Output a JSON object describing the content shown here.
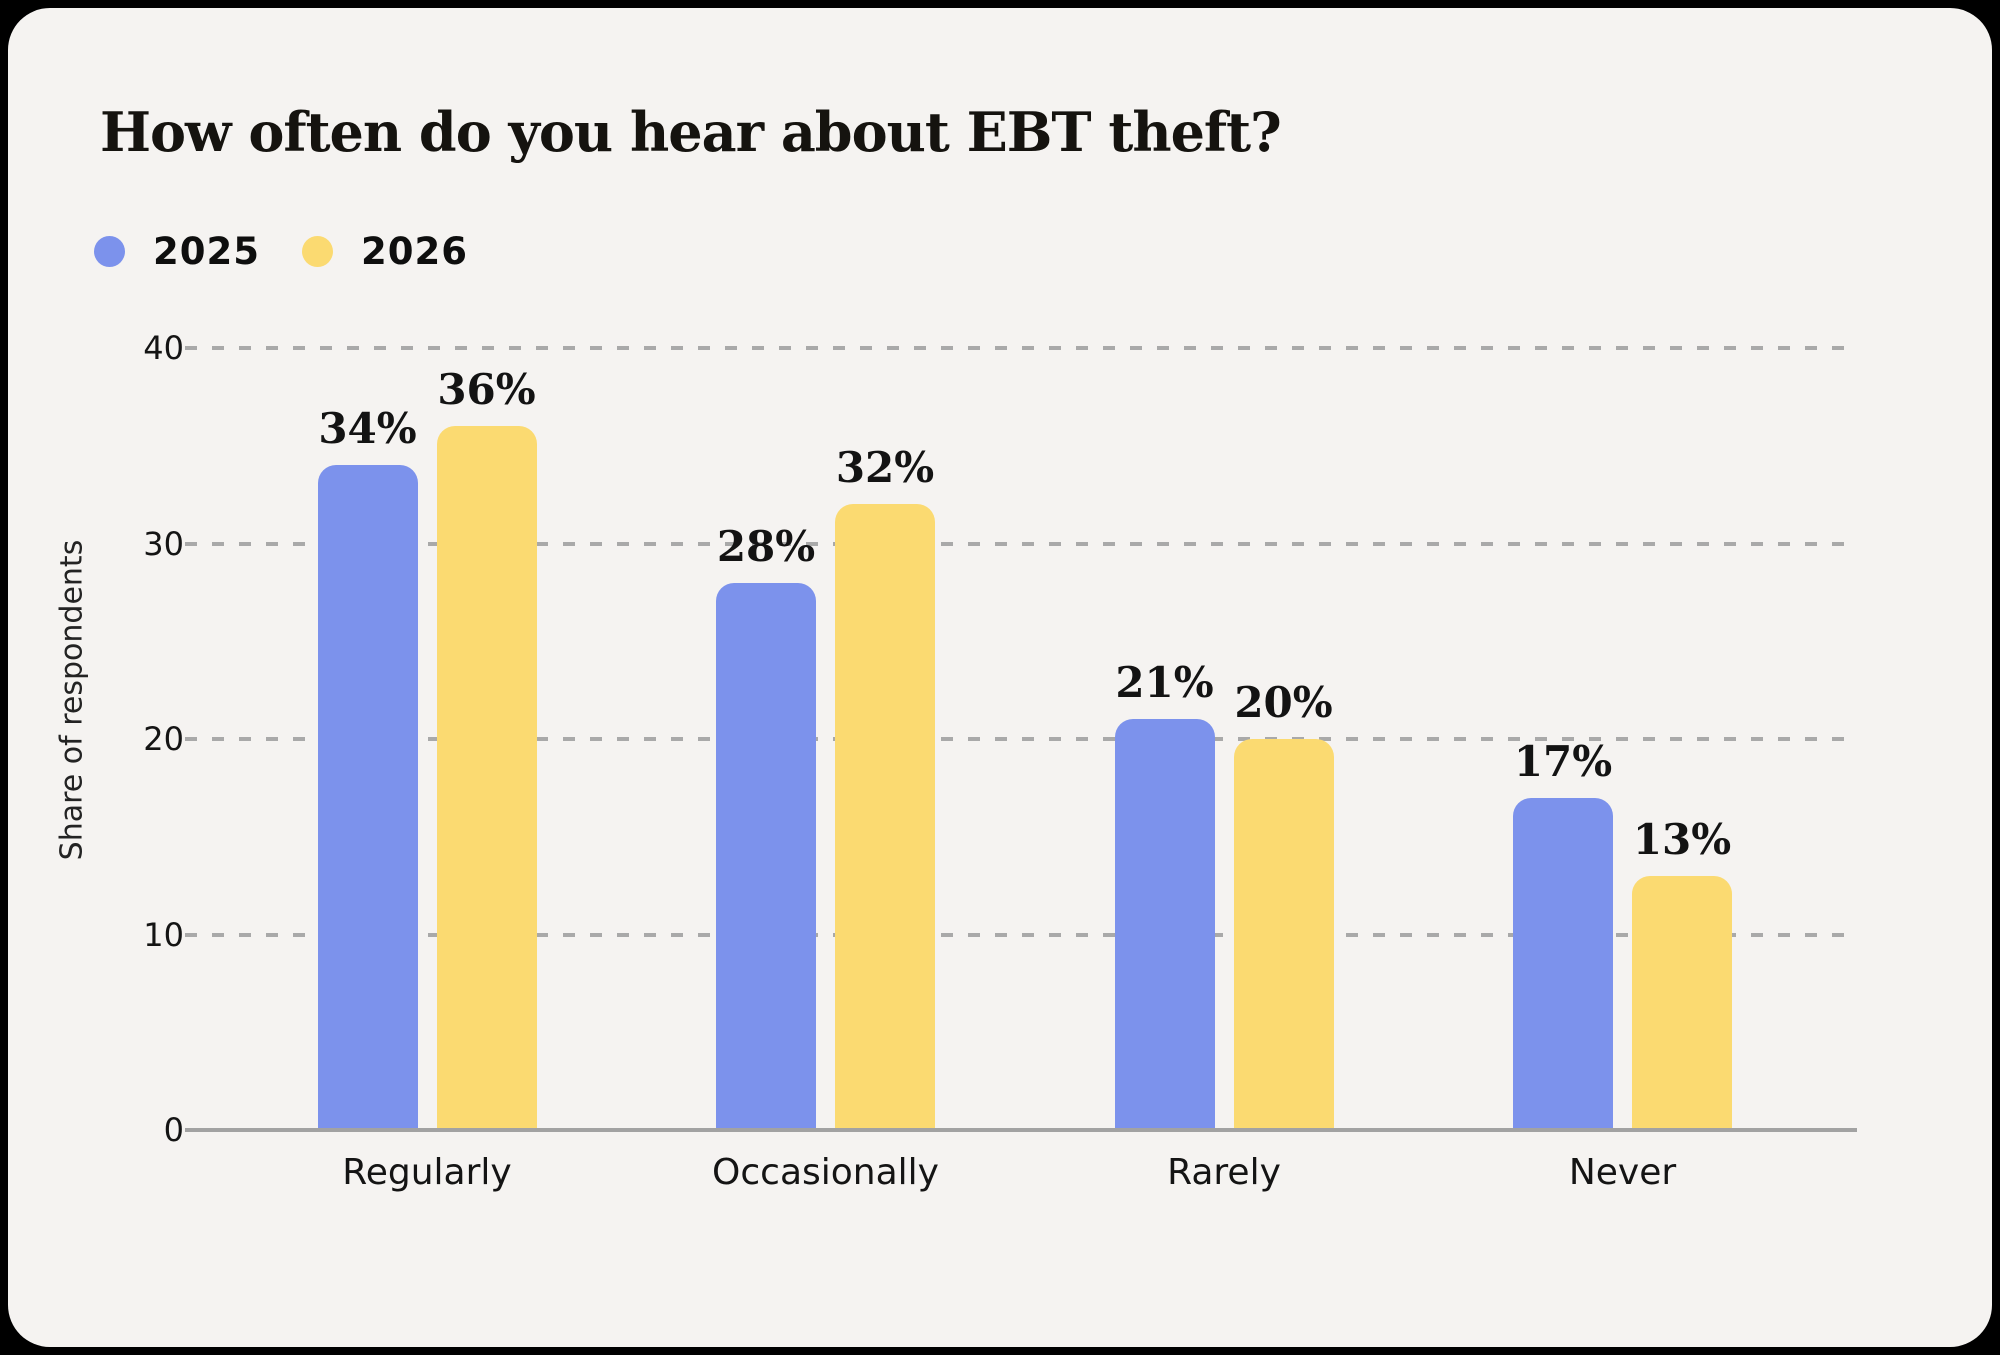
{
  "title": "How often do you hear about EBT theft?",
  "chart_data": {
    "type": "bar",
    "title": "How often do you hear about EBT theft?",
    "categories": [
      "Regularly",
      "Occasionally",
      "Rarely",
      "Never"
    ],
    "series": [
      {
        "name": "2025",
        "color": "#7C92EC",
        "values": [
          34,
          28,
          21,
          17
        ]
      },
      {
        "name": "2026",
        "color": "#FBDA71",
        "values": [
          36,
          32,
          20,
          13
        ]
      }
    ],
    "value_suffix": "%",
    "value_labels": {
      "2025": [
        "34%",
        "28%",
        "21%",
        "17%"
      ],
      "2026": [
        "36%",
        "32%",
        "20%",
        "13%"
      ]
    },
    "ylabel": "Share of respondents",
    "xlabel": "",
    "yticks": [
      0,
      10,
      20,
      30,
      40
    ],
    "ylim": [
      0,
      40
    ],
    "grid": "horizontal-dashed",
    "legend_position": "top-left"
  },
  "colors": {
    "background": "#000000",
    "panel": "#F5F3F1",
    "gridline": "#A9A9A9",
    "axis_line": "#A2A2A2",
    "text": "#141414",
    "series_2025": "#7C92EC",
    "series_2026": "#FBDA71"
  }
}
